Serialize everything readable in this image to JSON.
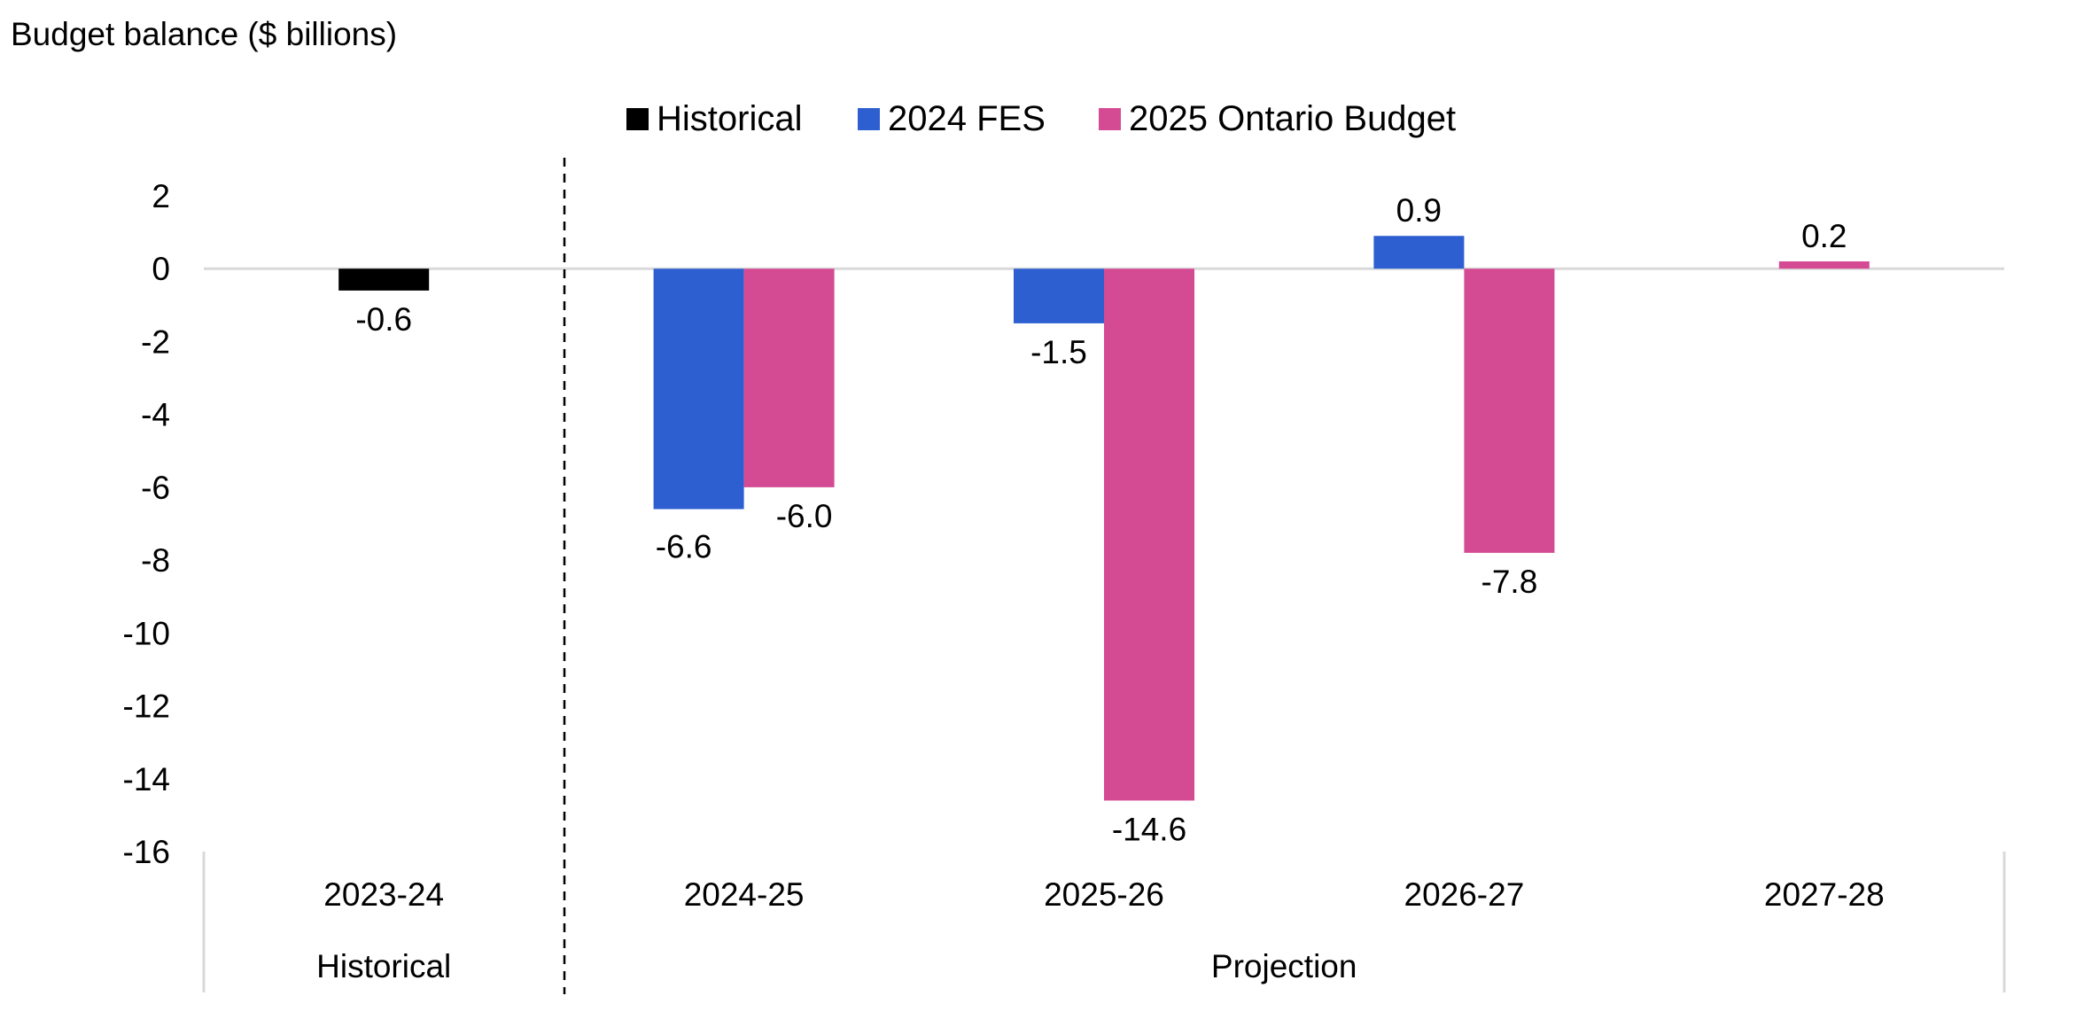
{
  "chart_data": {
    "type": "bar",
    "title": "",
    "ylabel": "Budget balance ($ billions)",
    "xlabel": "",
    "categories": [
      "2023-24",
      "2024-25",
      "2025-26",
      "2026-27",
      "2027-28"
    ],
    "groups": [
      {
        "label": "Historical",
        "categories": [
          "2023-24"
        ]
      },
      {
        "label": "Projection",
        "categories": [
          "2024-25",
          "2025-26",
          "2026-27",
          "2027-28"
        ]
      }
    ],
    "series": [
      {
        "name": "Historical",
        "color": "#000000",
        "values": [
          -0.6,
          null,
          null,
          null,
          null
        ],
        "labels": [
          "-0.6",
          "",
          "",
          "",
          ""
        ]
      },
      {
        "name": "2024 FES",
        "color": "#2D5FD1",
        "values": [
          null,
          -6.6,
          -1.5,
          0.9,
          null
        ],
        "labels": [
          "",
          "-6.6",
          "-1.5",
          "0.9",
          ""
        ]
      },
      {
        "name": "2025 Ontario Budget",
        "color": "#D44B93",
        "values": [
          null,
          -6.0,
          -14.6,
          -7.8,
          0.2
        ],
        "labels": [
          "",
          "-6.0",
          "-14.6",
          "-7.8",
          "0.2"
        ]
      }
    ],
    "ylim": [
      -16,
      2
    ],
    "yticks": [
      2,
      0,
      -2,
      -4,
      -6,
      -8,
      -10,
      -12,
      -14,
      -16
    ],
    "grid": false,
    "legend": "top-center"
  }
}
